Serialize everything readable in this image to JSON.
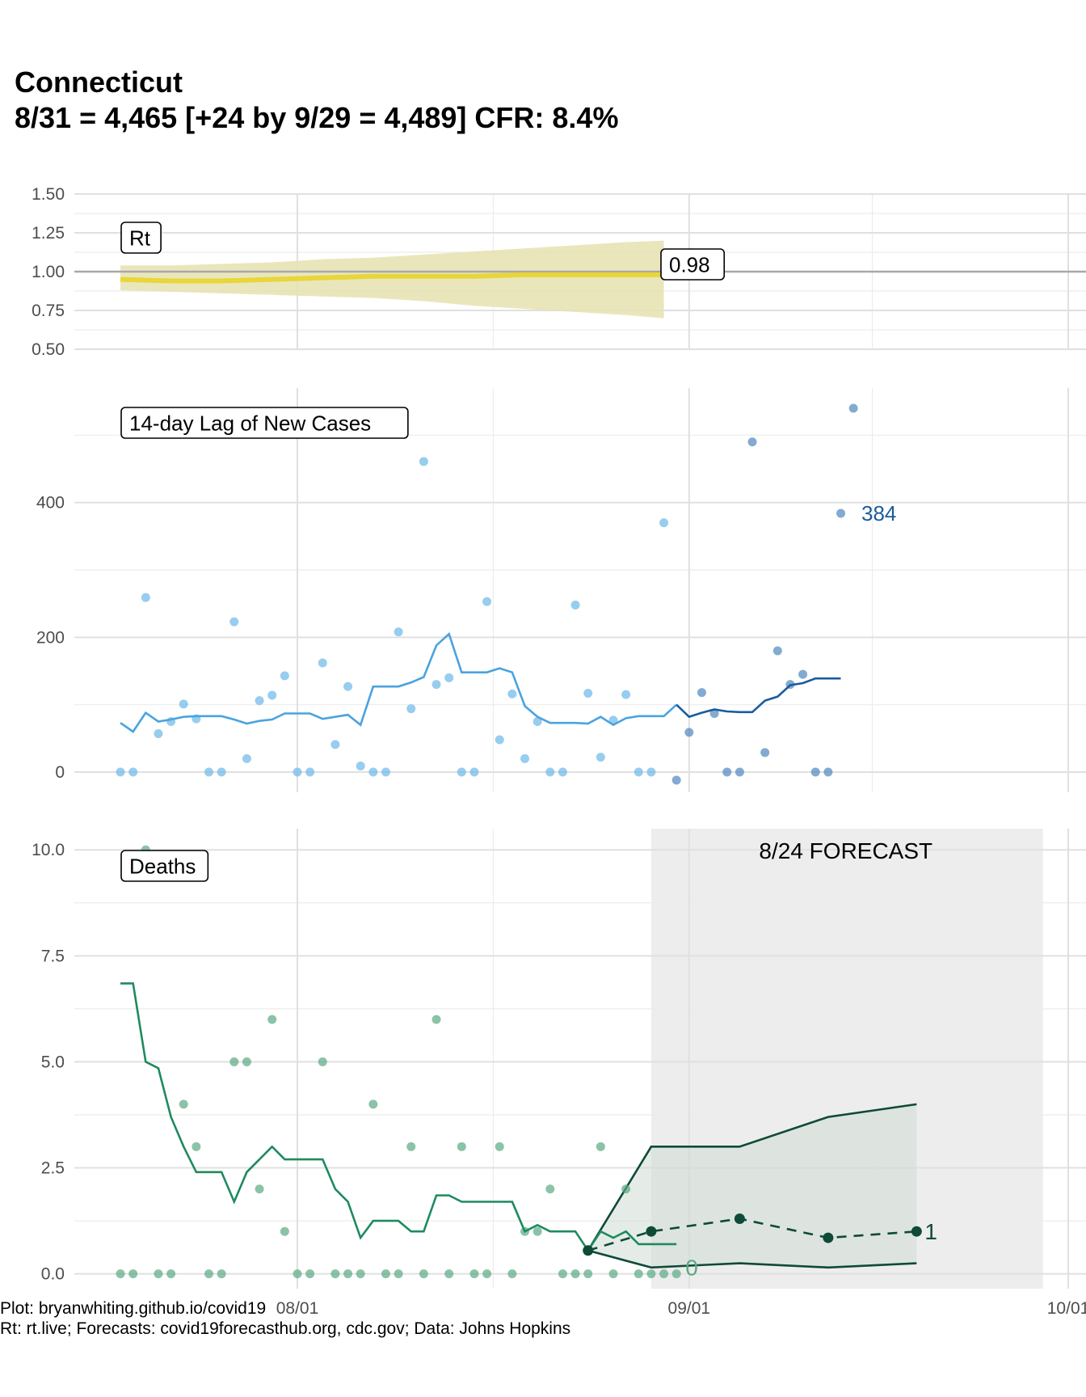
{
  "title": "Connecticut",
  "subtitle": "8/31 = 4,465 [+24 by 9/29 = 4,489] CFR: 8.4%",
  "caption": {
    "line1": "Plot: bryanwhiting.github.io/covid19",
    "line2": "Rt: rt.live; Forecasts: covid19forecasthub.org, cdc.gov; Data: Johns Hopkins"
  },
  "colors": {
    "rt_line": "#e8d63a",
    "rt_band": "#e6e2b0",
    "cases_point_past": "#6bb8e8",
    "cases_line_past": "#4aa3df",
    "cases_point_recent": "#4f86bd",
    "cases_line_recent": "#1a5c9e",
    "deaths_point": "#5aaa83",
    "deaths_line": "#1f8a5e",
    "forecast": "#0f4a38",
    "forecast_panel": "#ededed",
    "grid": "#e0e0e0"
  },
  "chart_data": [
    {
      "type": "area",
      "panel_label": "Rt",
      "x_ticks": [
        "08/01",
        "09/01",
        "10/01"
      ],
      "y_ticks": [
        "0.50",
        "0.75",
        "1.00",
        "1.25",
        "1.50"
      ],
      "ylim": [
        0.5,
        1.5
      ],
      "xlim_days": [
        -15,
        62
      ],
      "reference_line": 1.0,
      "end_label": "0.98",
      "series": [
        {
          "x_day": [
            -14,
            -10,
            -6,
            -2,
            2,
            6,
            10,
            14,
            18,
            22,
            26,
            29
          ],
          "rt": [
            0.95,
            0.94,
            0.94,
            0.95,
            0.96,
            0.97,
            0.97,
            0.97,
            0.98,
            0.98,
            0.98,
            0.98
          ],
          "lower": [
            0.88,
            0.87,
            0.86,
            0.85,
            0.84,
            0.83,
            0.81,
            0.78,
            0.76,
            0.74,
            0.72,
            0.7
          ],
          "upper": [
            1.04,
            1.04,
            1.05,
            1.06,
            1.08,
            1.09,
            1.11,
            1.13,
            1.15,
            1.17,
            1.19,
            1.2
          ]
        }
      ]
    },
    {
      "type": "scatter",
      "panel_label": "14-day Lag of New Cases",
      "x_ticks": [
        "08/01",
        "09/01",
        "10/01"
      ],
      "y_ticks": [
        "0",
        "200",
        "400"
      ],
      "ylim": [
        -30,
        570
      ],
      "xlim_days": [
        -15,
        62
      ],
      "end_label": "384",
      "split_day": 30,
      "points": {
        "x_day": [
          -14,
          -13,
          -12,
          -11,
          -10,
          -9,
          -8,
          -7,
          -6,
          -5,
          -4,
          -3,
          -2,
          -1,
          0,
          1,
          2,
          3,
          4,
          5,
          6,
          7,
          8,
          9,
          10,
          11,
          12,
          13,
          14,
          15,
          16,
          17,
          18,
          19,
          20,
          21,
          22,
          23,
          24,
          25,
          26,
          27,
          28,
          29,
          30,
          31,
          32,
          33,
          34,
          35,
          36,
          37,
          38,
          39,
          40,
          41,
          42,
          43,
          44
        ],
        "y": [
          0,
          0,
          259,
          57,
          75,
          101,
          79,
          0,
          0,
          223,
          20,
          106,
          114,
          143,
          0,
          0,
          162,
          41,
          127,
          9,
          0,
          0,
          208,
          94,
          461,
          130,
          140,
          0,
          0,
          253,
          48,
          116,
          20,
          75,
          0,
          0,
          248,
          117,
          22,
          77,
          115,
          0,
          0,
          370,
          -12,
          59,
          118,
          87,
          0,
          0,
          490,
          29,
          180,
          130,
          145,
          0,
          0,
          384,
          540
        ]
      },
      "trend": {
        "x_day": [
          -14,
          -13,
          -12,
          -11,
          -10,
          -9,
          -8,
          -7,
          -6,
          -5,
          -4,
          -3,
          -2,
          -1,
          0,
          1,
          2,
          3,
          4,
          5,
          6,
          7,
          8,
          9,
          10,
          11,
          12,
          13,
          14,
          15,
          16,
          17,
          18,
          19,
          20,
          21,
          22,
          23,
          24,
          25,
          26,
          27,
          28,
          29,
          30,
          31,
          32,
          33,
          34,
          35,
          36,
          37,
          38,
          39,
          40,
          41,
          42,
          43
        ],
        "y": [
          73,
          60,
          88,
          75,
          78,
          82,
          83,
          83,
          83,
          78,
          72,
          76,
          78,
          87,
          87,
          87,
          79,
          82,
          85,
          70,
          127,
          127,
          127,
          133,
          141,
          188,
          205,
          148,
          148,
          148,
          154,
          148,
          98,
          82,
          73,
          73,
          73,
          72,
          82,
          70,
          80,
          83,
          83,
          83,
          100,
          82,
          88,
          93,
          90,
          89,
          89,
          106,
          112,
          129,
          132,
          139,
          139,
          139
        ]
      }
    },
    {
      "type": "line",
      "panel_label": "Deaths",
      "annotation": "8/24 FORECAST",
      "x_ticks": [
        "08/01",
        "09/01",
        "10/01"
      ],
      "y_ticks": [
        "0.0",
        "2.5",
        "5.0",
        "7.5",
        "10.0"
      ],
      "ylim": [
        -0.35,
        10.5
      ],
      "xlim_days": [
        -15,
        62
      ],
      "forecast_window_days": [
        28,
        59
      ],
      "points": {
        "x_day": [
          -14,
          -13,
          -12,
          -11,
          -10,
          -9,
          -8,
          -7,
          -6,
          -5,
          -4,
          -3,
          -2,
          -1,
          0,
          1,
          2,
          3,
          4,
          5,
          6,
          7,
          8,
          9,
          10,
          11,
          12,
          13,
          14,
          15,
          16,
          17,
          18,
          19,
          20,
          21,
          22,
          23,
          24,
          25,
          26,
          27,
          28,
          29,
          30
        ],
        "y": [
          0,
          0,
          10,
          0,
          0,
          4,
          3,
          0,
          0,
          5,
          5,
          2,
          6,
          1,
          0,
          0,
          5,
          0,
          0,
          0,
          4,
          0,
          0,
          3,
          0,
          6,
          0,
          3,
          0,
          0,
          3,
          0,
          1,
          1,
          2,
          0,
          0,
          0,
          3,
          0,
          2,
          0,
          0,
          0,
          0
        ]
      },
      "trend": {
        "x_day": [
          -14,
          -13,
          -12,
          -11,
          -10,
          -9,
          -8,
          -7,
          -6,
          -5,
          -4,
          -3,
          -2,
          -1,
          0,
          1,
          2,
          3,
          4,
          5,
          6,
          7,
          8,
          9,
          10,
          11,
          12,
          13,
          14,
          15,
          16,
          17,
          18,
          19,
          20,
          21,
          22,
          23,
          24,
          25,
          26,
          27,
          28,
          29,
          30
        ],
        "y": [
          6.85,
          6.85,
          5,
          4.85,
          3.7,
          3,
          2.4,
          2.4,
          2.4,
          1.7,
          2.4,
          2.7,
          3,
          2.7,
          2.7,
          2.7,
          2.7,
          2,
          1.7,
          0.85,
          1.25,
          1.25,
          1.25,
          1,
          1,
          1.85,
          1.85,
          1.7,
          1.7,
          1.7,
          1.7,
          1.7,
          1,
          1.15,
          1,
          1,
          1,
          0.55,
          1,
          0.85,
          1,
          0.7,
          0.7,
          0.7,
          0.7
        ]
      },
      "forecast": {
        "x_day": [
          23,
          28,
          35,
          42,
          49
        ],
        "point": [
          0.55,
          1,
          1.3,
          0.85,
          1
        ],
        "lower": [
          0.55,
          0.15,
          0.25,
          0.15,
          0.25
        ],
        "upper": [
          0.55,
          3,
          3,
          3.7,
          4
        ],
        "end_label": "1",
        "low_label": "0"
      }
    }
  ]
}
